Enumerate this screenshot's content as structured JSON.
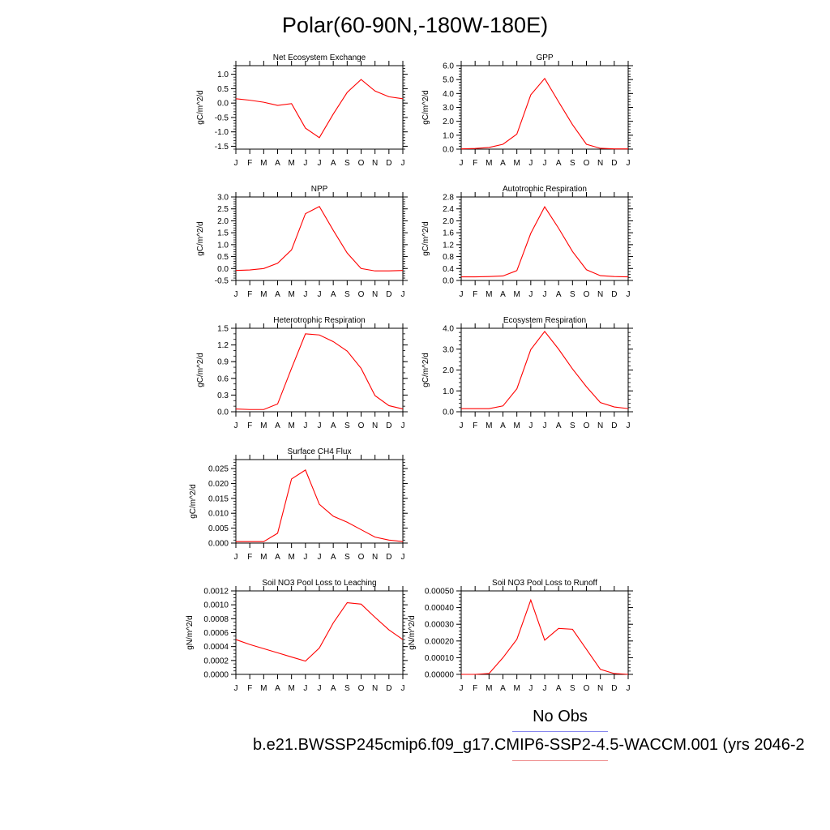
{
  "title": "Polar(60-90N,-180W-180E)",
  "x_tick_labels": [
    "J",
    "F",
    "M",
    "A",
    "M",
    "J",
    "J",
    "A",
    "S",
    "O",
    "N",
    "D",
    "J"
  ],
  "legend": {
    "obs_label": "No Obs",
    "obs_color": "#8888ee",
    "model_label": "b.e21.BWSSP245cmip6.f09_g17.CMIP6-SSP2-4.5-WACCM.001 (yrs 2046-2",
    "model_color": "#ee8888"
  },
  "series_color": "#ff0000",
  "chart_data": [
    {
      "type": "line",
      "title": "Net Ecosystem Exchange",
      "ylabel": "gC/m^2/d",
      "ylim": [
        -1.6,
        1.3
      ],
      "yticks": [
        "1.0",
        "0.5",
        "0.0",
        "-0.5",
        "-1.0",
        "-1.5"
      ],
      "ytick_values": [
        1.0,
        0.5,
        0.0,
        -0.5,
        -1.0,
        -1.5
      ],
      "ytick_minor": 0.1,
      "y": [
        0.15,
        0.1,
        0.03,
        -0.08,
        -0.02,
        -0.87,
        -1.2,
        -0.38,
        0.37,
        0.82,
        0.42,
        0.22,
        0.15
      ]
    },
    {
      "type": "line",
      "title": "GPP",
      "ylabel": "gC/m^2/d",
      "ylim": [
        0.0,
        6.0
      ],
      "yticks": [
        "6.0",
        "5.0",
        "4.0",
        "3.0",
        "2.0",
        "1.0",
        "0.0"
      ],
      "ytick_values": [
        6.0,
        5.0,
        4.0,
        3.0,
        2.0,
        1.0,
        0.0
      ],
      "ytick_minor": 0.2,
      "y": [
        0.02,
        0.05,
        0.12,
        0.35,
        1.08,
        3.9,
        5.08,
        3.4,
        1.76,
        0.35,
        0.06,
        0.02,
        0.02
      ]
    },
    {
      "type": "line",
      "title": "NPP",
      "ylabel": "gC/m^2/d",
      "ylim": [
        -0.5,
        3.0
      ],
      "yticks": [
        "3.0",
        "2.5",
        "2.0",
        "1.5",
        "1.0",
        "0.5",
        "0.0",
        "-0.5"
      ],
      "ytick_values": [
        3.0,
        2.5,
        2.0,
        1.5,
        1.0,
        0.5,
        0.0,
        -0.5
      ],
      "ytick_minor": 0.1,
      "y": [
        -0.08,
        -0.06,
        0.0,
        0.22,
        0.78,
        2.3,
        2.6,
        1.6,
        0.65,
        0.0,
        -0.1,
        -0.1,
        -0.08
      ]
    },
    {
      "type": "line",
      "title": "Autotrophic Respiration",
      "ylabel": "gC/m^2/d",
      "ylim": [
        0.0,
        2.8
      ],
      "yticks": [
        "2.8",
        "2.4",
        "2.0",
        "1.6",
        "1.2",
        "0.8",
        "0.4",
        "0.0"
      ],
      "ytick_values": [
        2.8,
        2.4,
        2.0,
        1.6,
        1.2,
        0.8,
        0.4,
        0.0
      ],
      "ytick_minor": 0.1,
      "y": [
        0.12,
        0.12,
        0.13,
        0.15,
        0.33,
        1.58,
        2.47,
        1.75,
        0.97,
        0.36,
        0.16,
        0.13,
        0.12
      ]
    },
    {
      "type": "line",
      "title": "Heterotrophic Respiration",
      "ylabel": "gC/m^2/d",
      "ylim": [
        0.0,
        1.5
      ],
      "yticks": [
        "1.5",
        "1.2",
        "0.9",
        "0.6",
        "0.3",
        "0.0"
      ],
      "ytick_values": [
        1.5,
        1.2,
        0.9,
        0.6,
        0.3,
        0.0
      ],
      "ytick_minor": 0.1,
      "y": [
        0.05,
        0.04,
        0.04,
        0.14,
        0.78,
        1.4,
        1.38,
        1.26,
        1.09,
        0.78,
        0.29,
        0.11,
        0.05
      ]
    },
    {
      "type": "line",
      "title": "Ecosystem Respiration",
      "ylabel": "gC/m^2/d",
      "ylim": [
        0.0,
        4.0
      ],
      "yticks": [
        "4.0",
        "3.0",
        "2.0",
        "1.0",
        "0.0"
      ],
      "ytick_values": [
        4.0,
        3.0,
        2.0,
        1.0,
        0.0
      ],
      "ytick_minor": 0.2,
      "y": [
        0.15,
        0.15,
        0.15,
        0.28,
        1.1,
        2.98,
        3.85,
        3.0,
        2.05,
        1.2,
        0.44,
        0.23,
        0.15
      ]
    },
    {
      "type": "line",
      "title": "Surface CH4 Flux",
      "ylabel": "gC/m^2/d",
      "ylim": [
        0.0,
        0.028
      ],
      "yticks": [
        "0.025",
        "0.020",
        "0.015",
        "0.010",
        "0.005",
        "0.000"
      ],
      "ytick_values": [
        0.025,
        0.02,
        0.015,
        0.01,
        0.005,
        0.0
      ],
      "ytick_minor": 0.001,
      "y": [
        0.0005,
        0.0005,
        0.0005,
        0.0033,
        0.0215,
        0.0245,
        0.013,
        0.009,
        0.007,
        0.0045,
        0.002,
        0.001,
        0.0005
      ]
    },
    {
      "type": "line",
      "title": "Soil NO3 Pool Loss to Leaching",
      "ylabel": "gN/m^2/d",
      "ylim": [
        0.0,
        0.0012
      ],
      "yticks": [
        "0.0012",
        "0.0010",
        "0.0008",
        "0.0006",
        "0.0004",
        "0.0002",
        "0.0000"
      ],
      "ytick_values": [
        0.0012,
        0.001,
        0.0008,
        0.0006,
        0.0004,
        0.0002,
        0.0
      ],
      "ytick_minor": 5e-05,
      "y": [
        0.0005,
        0.00043,
        0.00037,
        0.00031,
        0.00025,
        0.00019,
        0.00038,
        0.00074,
        0.00103,
        0.00101,
        0.00082,
        0.00064,
        0.0005
      ]
    },
    {
      "type": "line",
      "title": "Soil NO3 Pool Loss to Runoff",
      "ylabel": "gN/m^2/d",
      "ylim": [
        0.0,
        0.0005
      ],
      "yticks": [
        "0.00050",
        "0.00040",
        "0.00030",
        "0.00020",
        "0.00010",
        "0.00000"
      ],
      "ytick_values": [
        0.0005,
        0.0004,
        0.0003,
        0.0002,
        0.0001,
        0.0
      ],
      "ytick_minor": 2e-05,
      "y": [
        0.0,
        0.0,
        5e-06,
        0.0001,
        0.00021,
        0.000445,
        0.000205,
        0.000275,
        0.00027,
        0.00015,
        3e-05,
        5e-06,
        0.0
      ]
    }
  ]
}
